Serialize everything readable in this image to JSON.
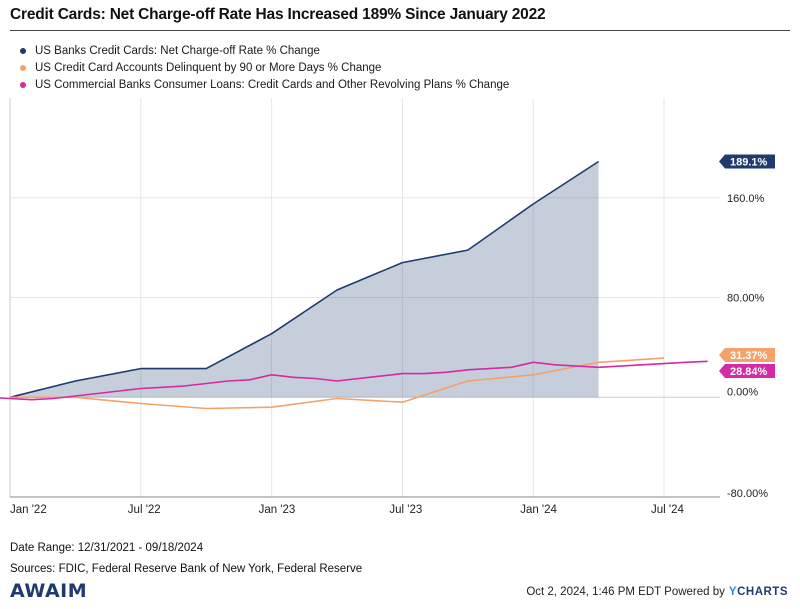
{
  "title": "Credit Cards: Net Charge-off Rate Has Increased 189% Since January 2022",
  "legend": [
    {
      "label": "US Banks Credit Cards: Net Charge-off Rate % Change",
      "color": "#1f3b6e"
    },
    {
      "label": "US Credit Card Accounts Delinquent by 90 or More Days % Change",
      "color": "#f5a26a"
    },
    {
      "label": "US Commercial Banks Consumer Loans: Credit Cards and Other Revolving Plans % Change",
      "color": "#d42aa4"
    }
  ],
  "chart_data": {
    "type": "line",
    "x_tick_labels": [
      "Jan '22",
      "Jul '22",
      "Jan '23",
      "Jul '23",
      "Jan '24",
      "Jul '24"
    ],
    "y_tick_labels": [
      "160.0%",
      "80.00%",
      "0.00%",
      "-80.00%"
    ],
    "ylim": [
      -80,
      240
    ],
    "series": [
      {
        "name": "US Banks Credit Cards: Net Charge-off Rate % Change",
        "color": "#1f3b6e",
        "fill": true,
        "x": [
          "2022-01",
          "2022-04",
          "2022-07",
          "2022-10",
          "2023-01",
          "2023-04",
          "2023-07",
          "2023-10",
          "2024-01",
          "2024-04"
        ],
        "y": [
          0,
          13,
          23,
          23,
          51,
          86,
          108,
          118,
          155,
          189.1
        ]
      },
      {
        "name": "US Credit Card Accounts Delinquent by 90 or More Days % Change",
        "color": "#f5a26a",
        "x": [
          "2022-01",
          "2022-04",
          "2022-07",
          "2022-10",
          "2023-01",
          "2023-04",
          "2023-07",
          "2023-10",
          "2024-01",
          "2024-04",
          "2024-07"
        ],
        "y": [
          0,
          0,
          -5,
          -9,
          -8,
          -1,
          -4,
          13,
          18,
          28,
          31.37
        ]
      },
      {
        "name": "US Commercial Banks Consumer Loans: Credit Cards and Other Revolving Plans % Change",
        "color": "#d42aa4",
        "x": [
          "2021-12",
          "2022-01",
          "2022-02",
          "2022-03",
          "2022-04",
          "2022-05",
          "2022-06",
          "2022-07",
          "2022-08",
          "2022-09",
          "2022-10",
          "2022-11",
          "2022-12",
          "2023-01",
          "2023-02",
          "2023-03",
          "2023-04",
          "2023-05",
          "2023-06",
          "2023-07",
          "2023-08",
          "2023-09",
          "2023-10",
          "2023-11",
          "2023-12",
          "2024-01",
          "2024-02",
          "2024-03",
          "2024-04",
          "2024-05",
          "2024-06",
          "2024-07",
          "2024-08",
          "2024-09"
        ],
        "y": [
          0,
          -1,
          -2,
          -1,
          1,
          3,
          5,
          7,
          8,
          9,
          11,
          13,
          14,
          18,
          16,
          15,
          13,
          15,
          17,
          19,
          19,
          20,
          22,
          23,
          24,
          28,
          26,
          25,
          24,
          25,
          26,
          27,
          28,
          28.84
        ]
      }
    ],
    "end_labels": [
      {
        "text": "189.1%",
        "color": "#1f3b6e",
        "value": 189.1
      },
      {
        "text": "31.37%",
        "color": "#f5a26a",
        "value": 31.37
      },
      {
        "text": "28.84%",
        "color": "#d42aa4",
        "value": 28.84
      }
    ]
  },
  "footer": {
    "date_range": "Date Range: 12/31/2021 - 09/18/2024",
    "sources": "Sources: FDIC, Federal Reserve Bank of New York, Federal Reserve",
    "timestamp": "Oct 2, 2024, 1:46 PM EDT Powered by",
    "brand_logo": "AWAIM",
    "ycharts_y": "Y",
    "ycharts_rest": "CHARTS"
  }
}
